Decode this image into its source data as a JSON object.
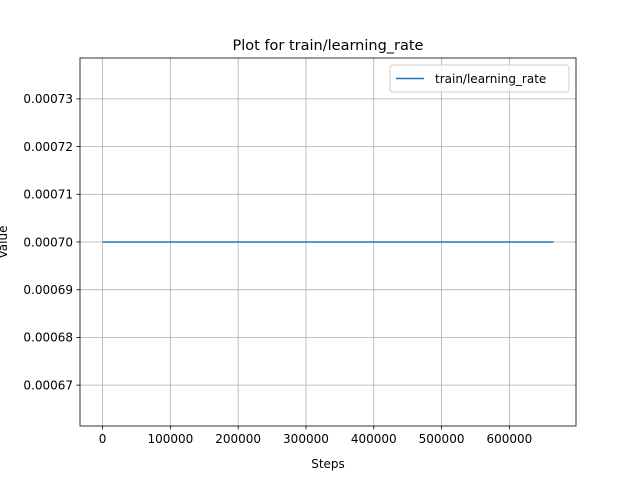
{
  "chart_data": {
    "type": "line",
    "title": "Plot for train/learning_rate",
    "xlabel": "Steps",
    "ylabel": "Value",
    "xlim": [
      -33250,
      698250
    ],
    "ylim": [
      0.00066143,
      0.00073857
    ],
    "xticks": [
      0,
      100000,
      200000,
      300000,
      400000,
      500000,
      600000
    ],
    "xtick_labels": [
      "0",
      "100000",
      "200000",
      "300000",
      "400000",
      "500000",
      "600000"
    ],
    "yticks": [
      0.00067,
      0.00068,
      0.00069,
      0.0007,
      0.00071,
      0.00072,
      0.00073
    ],
    "ytick_labels": [
      "0.00067",
      "0.00068",
      "0.00069",
      "0.00070",
      "0.00071",
      "0.00072",
      "0.00073"
    ],
    "grid": true,
    "legend_position": "top-right",
    "series": [
      {
        "name": "train/learning_rate",
        "color": "#1f77b4",
        "x": [
          0,
          665000
        ],
        "y": [
          0.0007,
          0.0007
        ]
      }
    ]
  }
}
